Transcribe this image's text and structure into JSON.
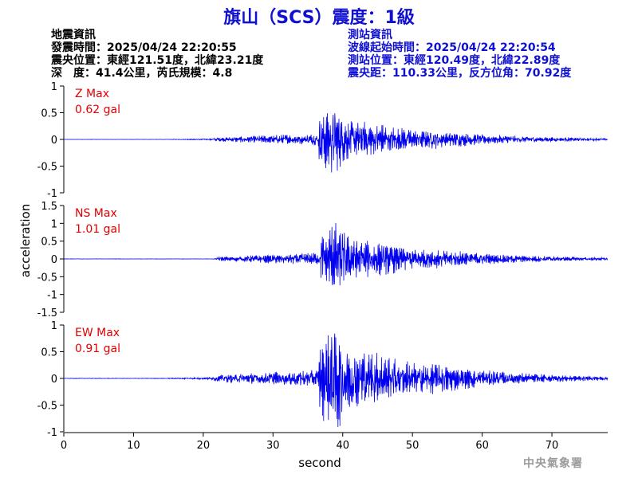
{
  "title": "旗山（SCS）震度：1級",
  "earthquake_info": {
    "header": "地震資訊",
    "origin_time": "發震時間：2025/04/24 22:20:55",
    "epicenter": "震央位置：東經121.51度，北緯23.21度",
    "depth_magnitude": "深　度：41.4公里，芮氏規模：4.8"
  },
  "station_info": {
    "header": "測站資訊",
    "waveform_start": "波線起始時間：2025/04/24 22:20:54",
    "station_location": "測站位置：東經120.49度，北緯22.89度",
    "distance_azimuth": "震央距：110.33公里，反方位角：70.92度"
  },
  "credit": "中央氣象署",
  "colors": {
    "trace": "#0000ee",
    "max_label": "#e00000",
    "title": "#1010d0",
    "station_info": "#1010d0"
  },
  "chart_data": {
    "type": "line",
    "xlabel": "second",
    "ylabel": "acceleration",
    "xlim": [
      0,
      78
    ],
    "x_ticks": [
      0,
      10,
      20,
      30,
      40,
      50,
      60,
      70
    ],
    "grid": false,
    "panels": [
      {
        "component": "Z",
        "max_label": "Z Max",
        "max_value": "0.62 gal",
        "peak": 0.62,
        "ylim": [
          -1,
          1
        ],
        "y_ticks": [
          -1,
          -0.5,
          0,
          0.5,
          1
        ],
        "quiet_until": 15,
        "arrival": 21.5,
        "peak_time": 38.5
      },
      {
        "component": "NS",
        "max_label": "NS Max",
        "max_value": "1.01 gal",
        "peak": 1.01,
        "ylim": [
          -1.5,
          1.5
        ],
        "y_ticks": [
          -1.5,
          -1,
          -0.5,
          0,
          0.5,
          1,
          1.5
        ],
        "quiet_until": 21.5,
        "arrival": 22.0,
        "peak_time": 38.8
      },
      {
        "component": "EW",
        "max_label": "EW Max",
        "max_value": "0.91 gal",
        "peak": 0.91,
        "ylim": [
          -1,
          1
        ],
        "y_ticks": [
          -1,
          -0.5,
          0,
          0.5,
          1
        ],
        "quiet_until": 14,
        "arrival": 21.5,
        "peak_time": 38.6
      }
    ]
  }
}
